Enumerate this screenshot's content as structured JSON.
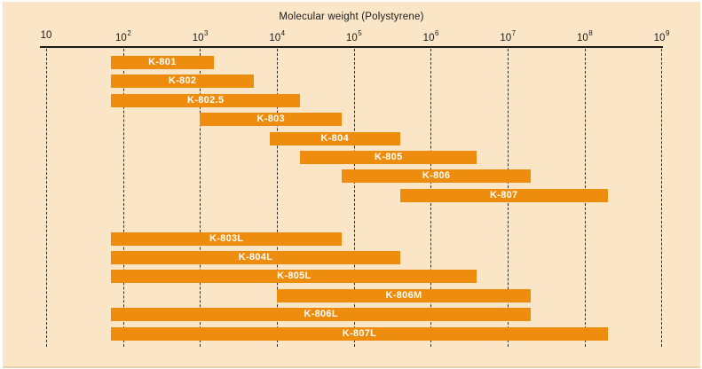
{
  "colors": {
    "panel_background": "#FAE5C7",
    "bar": "#EE8C0E",
    "bar_label": "#FFFFFF",
    "axis_and_text": "#1A1A1A",
    "gridline": "#2E2E2E",
    "outer_margin": "#FFFFFF",
    "bottom_edge_line": "#EBD0A9"
  },
  "chart_data": {
    "type": "bar",
    "orientation": "horizontal-range",
    "title": "Molecular weight (Polystyrene)",
    "xlabel": "Molecular weight (Polystyrene)",
    "x_scale": "log10",
    "x_min": 10,
    "x_max": 1000000000,
    "grid": "dashed-vertical-at-each-decade",
    "legend": "none",
    "ticks": [
      {
        "value": 10,
        "base": "10",
        "sup": ""
      },
      {
        "value": 100,
        "base": "10",
        "sup": "2"
      },
      {
        "value": 1000,
        "base": "10",
        "sup": "3"
      },
      {
        "value": 10000,
        "base": "10",
        "sup": "4"
      },
      {
        "value": 100000,
        "base": "10",
        "sup": "5"
      },
      {
        "value": 1000000,
        "base": "10",
        "sup": "6"
      },
      {
        "value": 10000000,
        "base": "10",
        "sup": "7"
      },
      {
        "value": 100000000,
        "base": "10",
        "sup": "8"
      },
      {
        "value": 1000000000,
        "base": "10",
        "sup": "9"
      }
    ],
    "series": [
      {
        "name": "K-801",
        "group": "upper",
        "range": [
          70,
          1500
        ]
      },
      {
        "name": "K-802",
        "group": "upper",
        "range": [
          70,
          5000
        ]
      },
      {
        "name": "K-802.5",
        "group": "upper",
        "range": [
          70,
          20000
        ]
      },
      {
        "name": "K-803",
        "group": "upper",
        "range": [
          1000,
          70000
        ]
      },
      {
        "name": "K-804",
        "group": "upper",
        "range": [
          8000,
          400000
        ]
      },
      {
        "name": "K-805",
        "group": "upper",
        "range": [
          20000,
          4000000
        ]
      },
      {
        "name": "K-806",
        "group": "upper",
        "range": [
          70000,
          20000000
        ]
      },
      {
        "name": "K-807",
        "group": "upper",
        "range": [
          400000,
          200000000
        ]
      },
      {
        "name": "K-803L",
        "group": "lower",
        "range": [
          70,
          70000
        ]
      },
      {
        "name": "K-804L",
        "group": "lower",
        "range": [
          70,
          400000
        ]
      },
      {
        "name": "K-805L",
        "group": "lower",
        "range": [
          70,
          4000000
        ]
      },
      {
        "name": "K-806M",
        "group": "lower",
        "range": [
          10000,
          20000000
        ]
      },
      {
        "name": "K-806L",
        "group": "lower",
        "range": [
          70,
          20000000
        ]
      },
      {
        "name": "K-807L",
        "group": "lower",
        "range": [
          70,
          200000000
        ]
      }
    ]
  }
}
